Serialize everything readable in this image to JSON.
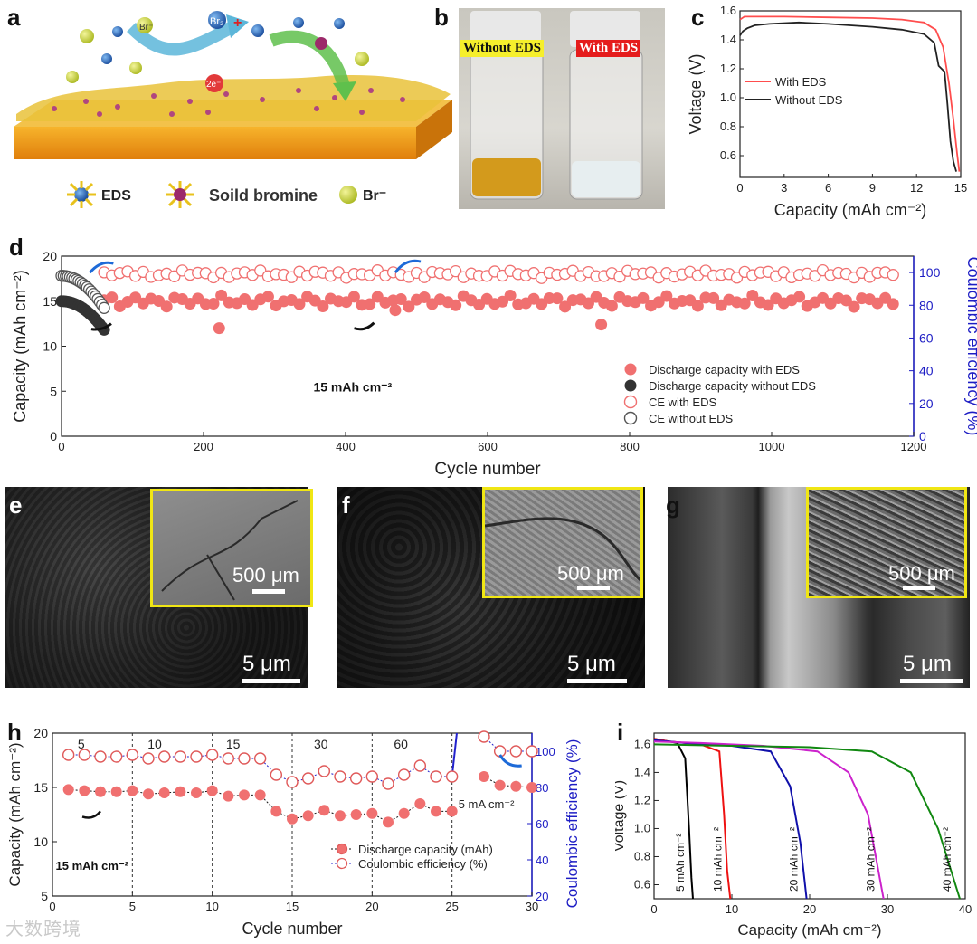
{
  "panel_labels": {
    "a": "a",
    "b": "b",
    "c": "c",
    "d": "d",
    "e": "e",
    "f": "f",
    "g": "g",
    "h": "h",
    "i": "i"
  },
  "panel_a": {
    "ion_br_minus": "Br⁻",
    "ion_br2": "Br₂",
    "ion_plus": "+",
    "electrons": "2e⁻",
    "legend": [
      "EDS",
      "Soild bromine",
      "Br⁻"
    ]
  },
  "panel_b": {
    "label_without": "Without EDS",
    "label_with": "With EDS"
  },
  "panel_c": {
    "chart_data": {
      "type": "line",
      "xlabel": "Capacity (mAh cm⁻²)",
      "ylabel": "Voltage (V)",
      "xlim": [
        0,
        15
      ],
      "ylim": [
        0.45,
        1.6
      ],
      "xticks": [
        "0",
        "3",
        "6",
        "9",
        "12",
        "15"
      ],
      "yticks": [
        "0.6",
        "0.8",
        "1.0",
        "1.2",
        "1.4",
        "1.6"
      ],
      "series": [
        {
          "name": "With EDS",
          "color": "#ff4d4d",
          "x": [
            0,
            0.3,
            1,
            3,
            6,
            9,
            11,
            12.5,
            13.3,
            13.8,
            14.2,
            14.5,
            14.75,
            14.9
          ],
          "y": [
            1.54,
            1.56,
            1.56,
            1.56,
            1.555,
            1.55,
            1.54,
            1.52,
            1.47,
            1.35,
            1.1,
            0.85,
            0.62,
            0.49
          ]
        },
        {
          "name": "Without EDS",
          "color": "#222222",
          "x": [
            0,
            0.2,
            0.5,
            1,
            2,
            4,
            6,
            9,
            11,
            12.5,
            13.2,
            13.5,
            13.9,
            14.1,
            14.3,
            14.5,
            14.7
          ],
          "y": [
            1.43,
            1.46,
            1.48,
            1.5,
            1.51,
            1.52,
            1.51,
            1.49,
            1.47,
            1.44,
            1.38,
            1.22,
            1.18,
            0.95,
            0.7,
            0.56,
            0.49
          ]
        }
      ]
    }
  },
  "panel_d": {
    "annotation": "15 mAh cm⁻²",
    "chart_data": {
      "type": "scatter",
      "xlabel": "Cycle number",
      "ylabel_left": "Capacity (mAh cm⁻²)",
      "ylabel_right": "Coulombic efficiency (%)",
      "xlim": [
        0,
        1200
      ],
      "ylim_left": [
        0,
        20
      ],
      "ylim_right": [
        0,
        110
      ],
      "xticks": [
        "0",
        "200",
        "400",
        "600",
        "800",
        "1000",
        "1200"
      ],
      "yticks_left": [
        "0",
        "5",
        "10",
        "15",
        "20"
      ],
      "yticks_right": [
        "0",
        "20",
        "40",
        "60",
        "80",
        "100"
      ],
      "legend": [
        "Discharge capacity with EDS",
        "Discharge capacity without EDS",
        "CE with EDS",
        "CE without EDS"
      ],
      "series": [
        {
          "name": "Discharge capacity with EDS",
          "axis": "left",
          "style": "filled",
          "color": "#f07070",
          "x_range": [
            60,
            1180
          ],
          "typical": 15.0,
          "outliers": [
            [
              222,
              12.0
            ],
            [
              760,
              12.4
            ],
            [
              470,
              14.0
            ]
          ]
        },
        {
          "name": "Discharge capacity without EDS",
          "axis": "left",
          "style": "filled",
          "color": "#333333",
          "x_range": [
            0,
            62
          ],
          "start": 15.0,
          "end": 11.6
        },
        {
          "name": "CE with EDS",
          "axis": "right",
          "style": "open",
          "color": "#f07070",
          "x_range": [
            60,
            1180
          ],
          "typical": 99
        },
        {
          "name": "CE without EDS",
          "axis": "right",
          "style": "open",
          "color": "#555555",
          "x_range": [
            0,
            62
          ],
          "start": 98,
          "end": 77
        }
      ]
    }
  },
  "panel_e": {
    "inset_scale": "500 μm",
    "main_scale": "5 μm"
  },
  "panel_f": {
    "inset_scale": "500 μm",
    "main_scale": "5 μm"
  },
  "panel_g": {
    "inset_scale": "500 μm",
    "main_scale": "5 μm"
  },
  "panel_h": {
    "annotation": "15 mAh cm⁻²",
    "annotation_5": "5 mA cm⁻²",
    "rate_labels": [
      {
        "x": 1.8,
        "text": "5"
      },
      {
        "x": 6.4,
        "text": "10"
      },
      {
        "x": 11.3,
        "text": "15"
      },
      {
        "x": 16.8,
        "text": "30"
      },
      {
        "x": 21.8,
        "text": "60"
      }
    ],
    "chart_data": {
      "type": "scatter",
      "xlabel": "Cycle number",
      "ylabel_left": "Capacity (mAh cm⁻²)",
      "ylabel_right": "Coulombic efficiency (%)",
      "xlim": [
        0,
        30
      ],
      "ylim_left": [
        5,
        20
      ],
      "ylim_right": [
        20,
        110
      ],
      "xticks": [
        "0",
        "5",
        "10",
        "15",
        "20",
        "25",
        "30"
      ],
      "yticks_left": [
        "5",
        "10",
        "15",
        "20"
      ],
      "yticks_right": [
        "20",
        "40",
        "60",
        "80",
        "100"
      ],
      "legend": [
        "Discharge capacity (mAh)",
        "Coulombic efficiency (%)"
      ],
      "x": [
        1,
        2,
        3,
        4,
        5,
        6,
        7,
        8,
        9,
        10,
        11,
        12,
        13,
        14,
        15,
        16,
        17,
        18,
        19,
        20,
        21,
        22,
        23,
        24,
        25
      ],
      "capacity": [
        14.8,
        14.7,
        14.6,
        14.6,
        14.7,
        14.4,
        14.5,
        14.6,
        14.5,
        14.7,
        14.2,
        14.3,
        14.3,
        12.8,
        12.1,
        12.4,
        12.9,
        12.4,
        12.5,
        12.6,
        11.8,
        12.6,
        13.5,
        12.8,
        12.8
      ],
      "ce": [
        98,
        98,
        97,
        97,
        98,
        96,
        97,
        97,
        97,
        98,
        96,
        96,
        96,
        87,
        83,
        85,
        89,
        86,
        85,
        86,
        82,
        87,
        92,
        86,
        86
      ],
      "x_after": [
        27,
        28,
        29,
        30
      ],
      "capacity_after": [
        16.0,
        15.2,
        15.1,
        15.0
      ],
      "ce_after": [
        108,
        100,
        100,
        100
      ]
    }
  },
  "panel_i": {
    "chart_data": {
      "type": "line",
      "xlabel": "Capacity (mAh cm⁻²)",
      "ylabel": "Voltage (V)",
      "xlim": [
        0,
        40
      ],
      "ylim": [
        0.5,
        1.68
      ],
      "xticks": [
        "0",
        "10",
        "20",
        "30",
        "40"
      ],
      "yticks": [
        "0.6",
        "0.8",
        "1.0",
        "1.2",
        "1.4",
        "1.6"
      ],
      "series": [
        {
          "name": "5 mAh cm⁻²",
          "color": "#000000",
          "x": [
            0,
            1,
            3,
            4,
            4.5,
            4.8,
            5.0
          ],
          "y": [
            1.64,
            1.63,
            1.61,
            1.5,
            1.0,
            0.65,
            0.5
          ]
        },
        {
          "name": "10 mAh cm⁻²",
          "color": "#ee1111",
          "x": [
            0,
            2,
            6,
            8.4,
            9.0,
            9.4,
            9.8
          ],
          "y": [
            1.64,
            1.62,
            1.6,
            1.55,
            1.1,
            0.7,
            0.5
          ]
        },
        {
          "name": "20 mAh cm⁻²",
          "color": "#1010aa",
          "x": [
            0,
            4,
            10,
            15,
            17.5,
            18.8,
            19.6
          ],
          "y": [
            1.63,
            1.61,
            1.59,
            1.55,
            1.3,
            0.9,
            0.5
          ]
        },
        {
          "name": "30 mAh cm⁻²",
          "color": "#cc22cc",
          "x": [
            0,
            6,
            14,
            21,
            25,
            27.5,
            29.5
          ],
          "y": [
            1.62,
            1.61,
            1.59,
            1.55,
            1.4,
            1.1,
            0.5
          ]
        },
        {
          "name": "40 mAh cm⁻²",
          "color": "#118811",
          "x": [
            0,
            10,
            20,
            28,
            33,
            36.5,
            39.3
          ],
          "y": [
            1.6,
            1.59,
            1.58,
            1.55,
            1.4,
            1.0,
            0.5
          ]
        }
      ]
    }
  },
  "watermark": "大数跨境"
}
